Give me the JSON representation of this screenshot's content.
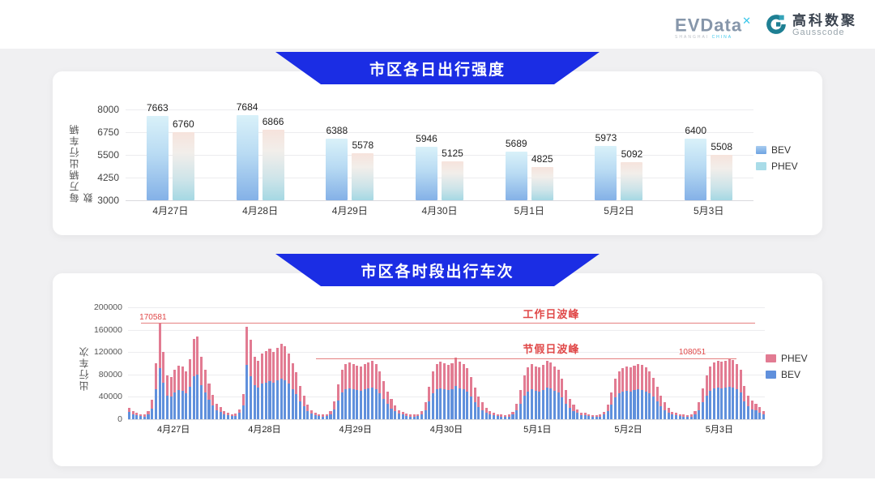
{
  "logo": {
    "evdata": "EVData",
    "evdata_mark": "✕",
    "shanghai": "SHANGHAI",
    "china": "CHINA",
    "gauss_cn": "高科数聚",
    "gauss_en": "Gausscode"
  },
  "colors": {
    "banner_blue": "#1b2de4",
    "bev_blue": "#6090dc",
    "phev_pink": "#e27b92",
    "annotation_red": "#e04848",
    "card_bg": "#ffffff",
    "page_bg": "#f0f0f2"
  },
  "chart_data": [
    {
      "type": "bar",
      "title": "市区各日出行强度",
      "ylabel": "每万辆出行车辆数",
      "categories": [
        "4月27日",
        "4月28日",
        "4月29日",
        "4月30日",
        "5月1日",
        "5月2日",
        "5月3日"
      ],
      "yticks": [
        3000,
        4250,
        5500,
        6750,
        8000
      ],
      "ylim": [
        3000,
        8000
      ],
      "grid": true,
      "legend_position": "right",
      "series": [
        {
          "name": "BEV",
          "values": [
            7663,
            7684,
            6388,
            5946,
            5689,
            5973,
            6400
          ]
        },
        {
          "name": "PHEV",
          "values": [
            6760,
            6866,
            5578,
            5125,
            4825,
            5092,
            5508
          ]
        }
      ]
    },
    {
      "type": "bar-stacked",
      "title": "市区各时段出行车次",
      "ylabel": "出行车次",
      "categories": [
        "4月27日",
        "4月28日",
        "4月29日",
        "4月30日",
        "5月1日",
        "5月2日",
        "5月3日"
      ],
      "bars_per_day": 24,
      "yticks": [
        0,
        40000,
        80000,
        120000,
        160000,
        200000
      ],
      "ylim": [
        0,
        200000
      ],
      "grid": true,
      "legend_position": "right",
      "annotations": {
        "workday": {
          "label": "工作日波峰",
          "value_label": "170581",
          "value": 170581
        },
        "holiday": {
          "label": "节假日波峰",
          "value_label": "108051",
          "value": 108051
        }
      },
      "series": [
        {
          "name": "BEV",
          "values": [
            12400,
            8700,
            6800,
            5600,
            5000,
            8700,
            19000,
            54000,
            91000,
            65000,
            42000,
            40500,
            47500,
            52000,
            51000,
            46500,
            58000,
            77000,
            80000,
            60500,
            47500,
            34500,
            24000,
            16000,
            13600,
            9300,
            6800,
            5600,
            6200,
            11000,
            24500,
            97000,
            77000,
            60500,
            56500,
            63500,
            66000,
            68000,
            65000,
            69000,
            73000,
            70000,
            63500,
            54000,
            45500,
            32500,
            23000,
            15000,
            9900,
            6800,
            5600,
            5000,
            5600,
            9300,
            17500,
            33500,
            47500,
            53000,
            54500,
            53500,
            52000,
            51500,
            53000,
            55000,
            56500,
            53500,
            46500,
            37000,
            27000,
            19500,
            14000,
            9900,
            8100,
            6200,
            5000,
            5000,
            5600,
            8700,
            16500,
            31500,
            46000,
            53500,
            55500,
            54000,
            52500,
            54000,
            59500,
            55500,
            53000,
            49000,
            41000,
            31000,
            22000,
            16500,
            12000,
            8700,
            7400,
            5600,
            5000,
            4300,
            5000,
            8100,
            15500,
            28000,
            42000,
            50000,
            53000,
            51500,
            50000,
            52500,
            56000,
            54500,
            51500,
            47500,
            39000,
            28000,
            20000,
            15000,
            11000,
            7400,
            6800,
            5600,
            4300,
            4300,
            5000,
            8100,
            14500,
            26000,
            39000,
            46500,
            49500,
            51500,
            50000,
            52000,
            53500,
            52500,
            50000,
            46500,
            40000,
            31500,
            23000,
            16500,
            11500,
            8100,
            7400,
            5600,
            5000,
            4300,
            5000,
            8700,
            16500,
            30000,
            42000,
            51500,
            54500,
            56000,
            55500,
            56500,
            58000,
            57000,
            53000,
            47500,
            32500,
            23000,
            18000,
            15500,
            12000,
            9300
          ]
        },
        {
          "name": "PHEV",
          "values": [
            7600,
            5300,
            4200,
            3400,
            3000,
            5300,
            16000,
            46000,
            79581,
            55000,
            36000,
            34500,
            40500,
            44000,
            43000,
            39500,
            50000,
            66000,
            68000,
            51500,
            40500,
            29500,
            20000,
            12000,
            8400,
            5700,
            4200,
            3400,
            3800,
            7000,
            20500,
            68000,
            65000,
            51500,
            48500,
            54500,
            56000,
            58000,
            55000,
            59000,
            62000,
            60000,
            54500,
            46000,
            38500,
            27500,
            19000,
            11000,
            6100,
            4200,
            3400,
            3000,
            3400,
            5700,
            14500,
            28500,
            40500,
            45000,
            46500,
            45500,
            44000,
            43500,
            45000,
            47000,
            48500,
            45500,
            39500,
            31000,
            23000,
            16500,
            11000,
            6100,
            4900,
            3800,
            3000,
            3000,
            3400,
            5300,
            13500,
            26500,
            39000,
            45500,
            47500,
            46000,
            44500,
            46000,
            50500,
            47500,
            45000,
            42000,
            35000,
            26000,
            19000,
            13500,
            9000,
            5300,
            4600,
            3400,
            3000,
            2700,
            3000,
            4900,
            12500,
            24000,
            36000,
            43000,
            45000,
            43500,
            43000,
            44500,
            48000,
            46500,
            43500,
            40500,
            33000,
            24000,
            17000,
            11000,
            7000,
            4600,
            4200,
            3400,
            2700,
            2700,
            3000,
            4900,
            11500,
            22000,
            33000,
            39500,
            42500,
            43500,
            43000,
            44000,
            45500,
            44500,
            43000,
            39500,
            34000,
            26500,
            19000,
            13500,
            8500,
            4900,
            4600,
            3400,
            3000,
            2700,
            3000,
            5300,
            13500,
            25000,
            36000,
            43500,
            46500,
            48000,
            47500,
            48500,
            50051,
            49000,
            45000,
            40500,
            27500,
            19000,
            15000,
            12500,
            10000,
            5700
          ]
        }
      ]
    }
  ]
}
